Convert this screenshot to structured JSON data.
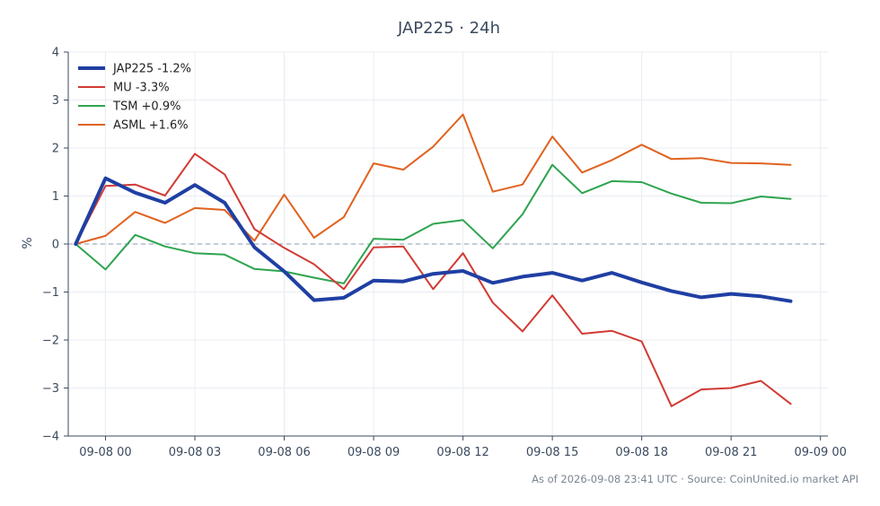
{
  "chart_data": {
    "type": "line",
    "title": "JAP225 · 24h",
    "ylabel": "%",
    "xlabel": "",
    "ylim": [
      -4,
      4
    ],
    "yticks": [
      4,
      3,
      2,
      1,
      0,
      -1,
      -2,
      -3,
      -4
    ],
    "ytick_labels": [
      "4",
      "3",
      "2",
      "1",
      "0",
      "−1",
      "−2",
      "−3",
      "−4"
    ],
    "xlim": [
      -1.25,
      24.25
    ],
    "xticks": [
      0,
      3,
      6,
      9,
      12,
      15,
      18,
      21,
      24
    ],
    "xtick_labels": [
      "09-08 00",
      "09-08 03",
      "09-08 06",
      "09-08 09",
      "09-08 12",
      "09-08 15",
      "09-08 18",
      "09-08 21",
      "09-09 00"
    ],
    "x": [
      -1,
      0,
      1,
      2,
      3,
      4,
      5,
      6,
      7,
      8,
      9,
      10,
      11,
      12,
      13,
      14,
      15,
      16,
      17,
      18,
      19,
      20,
      21,
      22,
      23
    ],
    "grid": true,
    "reference_line": 0,
    "legend_position": "top-left",
    "series": [
      {
        "name": "JAP225 -1.2%",
        "color": "#1f3fa3",
        "width": 4,
        "values": [
          0,
          1.37,
          1.07,
          0.86,
          1.23,
          0.86,
          -0.07,
          -0.57,
          -1.17,
          -1.12,
          -0.76,
          -0.78,
          -0.62,
          -0.56,
          -0.81,
          -0.68,
          -0.6,
          -0.76,
          -0.6,
          -0.8,
          -0.98,
          -1.11,
          -1.04,
          -1.09,
          -1.19
        ]
      },
      {
        "name": "MU -3.3%",
        "color": "#d13b34",
        "width": 2,
        "values": [
          0,
          1.21,
          1.24,
          1.01,
          1.88,
          1.45,
          0.31,
          -0.08,
          -0.42,
          -0.94,
          -0.07,
          -0.05,
          -0.94,
          -0.19,
          -1.22,
          -1.82,
          -1.07,
          -1.87,
          -1.81,
          -2.03,
          -3.38,
          -3.03,
          -3.0,
          -2.85,
          -3.33
        ]
      },
      {
        "name": "TSM +0.9%",
        "color": "#2ea44f",
        "width": 2,
        "values": [
          0,
          -0.53,
          0.19,
          -0.05,
          -0.19,
          -0.22,
          -0.52,
          -0.57,
          -0.7,
          -0.82,
          0.11,
          0.09,
          0.42,
          0.5,
          -0.09,
          0.62,
          1.65,
          1.06,
          1.31,
          1.29,
          1.05,
          0.86,
          0.85,
          0.99,
          0.94
        ]
      },
      {
        "name": "ASML +1.6%",
        "color": "#e0621f",
        "width": 2,
        "values": [
          0,
          0.17,
          0.67,
          0.44,
          0.75,
          0.71,
          0.07,
          1.03,
          0.13,
          0.56,
          1.68,
          1.55,
          2.03,
          2.7,
          1.09,
          1.24,
          2.24,
          1.49,
          1.75,
          2.07,
          1.77,
          1.79,
          1.69,
          1.68,
          1.65
        ]
      }
    ],
    "footer": "As of 2026-09-08 23:41 UTC · Source: CoinUnited.io market API"
  }
}
